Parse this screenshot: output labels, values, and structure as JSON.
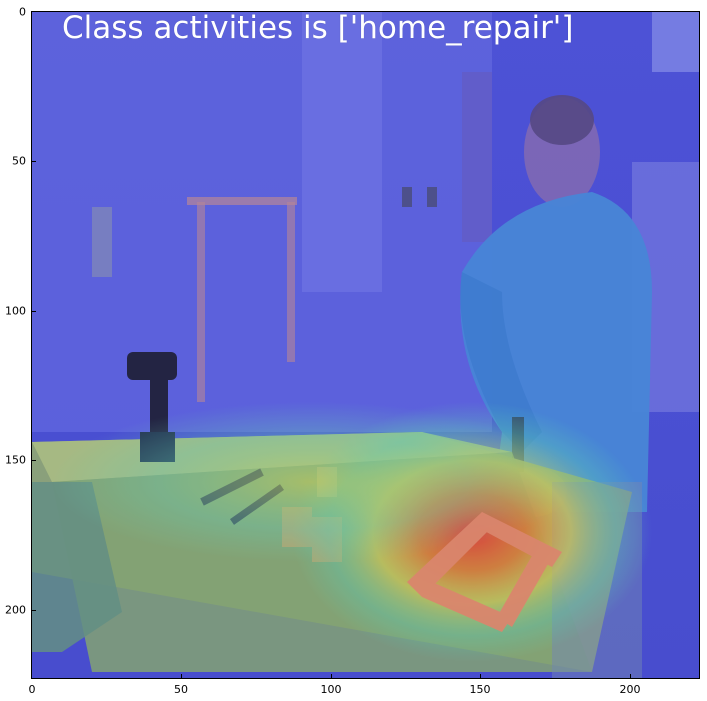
{
  "title": "Class activities is ['home_repair']",
  "axes": {
    "x_ticks": [
      "0",
      "50",
      "100",
      "150",
      "200"
    ],
    "y_ticks": [
      "0",
      "50",
      "100",
      "150",
      "200"
    ],
    "x_range": [
      0,
      223
    ],
    "y_range": [
      0,
      223
    ]
  },
  "overlay": {
    "type": "heatmap (class activation map over photo)",
    "colormap": "jet",
    "base_color": "#5a5fe0",
    "hot_color": "#e8392a"
  },
  "scene": {
    "subject_colors": {
      "shirt": "#4a8fd8",
      "skin": "#d9b08c",
      "wall": "#6c6fe0",
      "bench": "#9fb865"
    },
    "icons": [
      "person",
      "workbench",
      "cordless-drill",
      "hand-tools",
      "wooden-frame",
      "wall-outlet",
      "window"
    ]
  }
}
